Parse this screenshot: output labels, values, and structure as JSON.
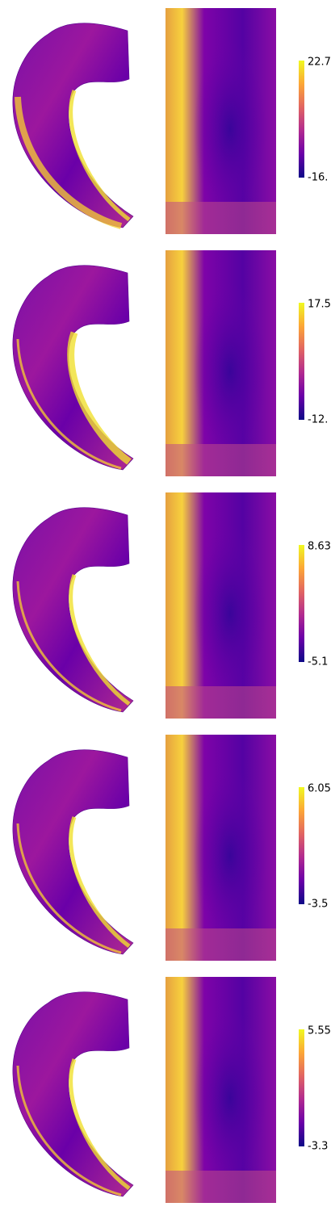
{
  "panels": [
    {
      "max_label": "22.7",
      "min_label": "-16."
    },
    {
      "max_label": "17.5",
      "min_label": "-12."
    },
    {
      "max_label": "8.63",
      "min_label": "-5.1"
    },
    {
      "max_label": "6.05",
      "min_label": "-3.5"
    },
    {
      "max_label": "5.55",
      "min_label": "-3.3"
    }
  ]
}
